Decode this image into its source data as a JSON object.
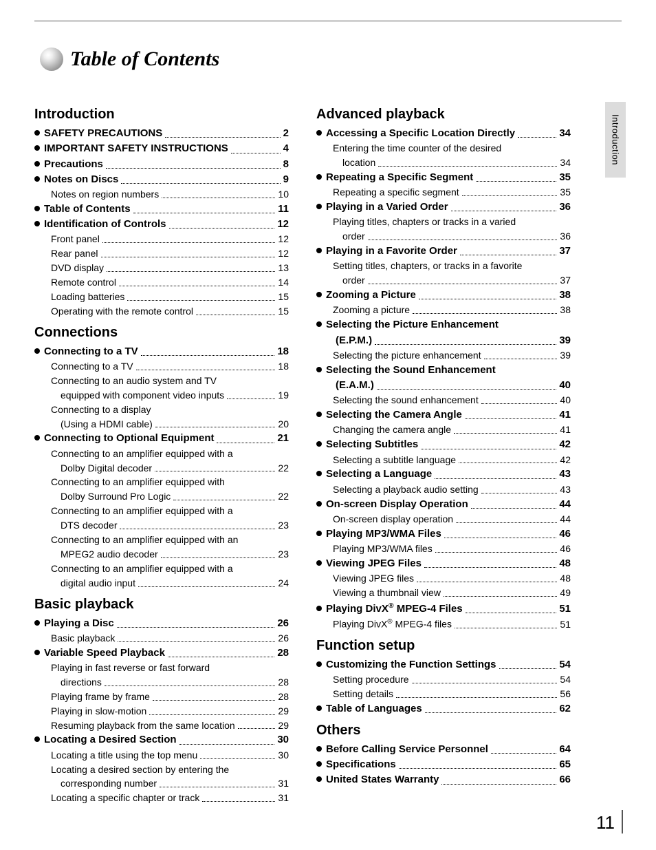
{
  "page_title": "Table of Contents",
  "side_tab": "Introduction",
  "page_number": "11",
  "left_sections": [
    {
      "heading": "Introduction",
      "items": [
        {
          "type": "bold",
          "text": "SAFETY PRECAUTIONS",
          "page": "2"
        },
        {
          "type": "bold",
          "text": "IMPORTANT SAFETY INSTRUCTIONS",
          "page": "4"
        },
        {
          "type": "bold",
          "text": "Precautions",
          "page": "8"
        },
        {
          "type": "bold",
          "text": "Notes on Discs",
          "page": "9"
        },
        {
          "type": "sub",
          "text": "Notes on region numbers",
          "page": "10"
        },
        {
          "type": "bold",
          "text": "Table of Contents",
          "page": "11"
        },
        {
          "type": "bold",
          "text": "Identification of Controls",
          "page": "12"
        },
        {
          "type": "sub",
          "text": "Front panel",
          "page": "12"
        },
        {
          "type": "sub",
          "text": "Rear panel",
          "page": "12"
        },
        {
          "type": "sub",
          "text": "DVD display",
          "page": "13"
        },
        {
          "type": "sub",
          "text": "Remote control",
          "page": "14"
        },
        {
          "type": "sub",
          "text": "Loading batteries",
          "page": "15"
        },
        {
          "type": "sub",
          "text": "Operating with the remote control",
          "page": "15"
        }
      ]
    },
    {
      "heading": "Connections",
      "items": [
        {
          "type": "bold",
          "text": "Connecting to a TV",
          "page": "18"
        },
        {
          "type": "sub",
          "text": "Connecting to a TV",
          "page": "18"
        },
        {
          "type": "wrap",
          "line1": "Connecting to an audio system and TV",
          "line2": "equipped with component video inputs",
          "page": "19"
        },
        {
          "type": "wrap",
          "line1": "Connecting to a display",
          "line2": "(Using a HDMI cable)",
          "page": "20"
        },
        {
          "type": "bold",
          "text": "Connecting to Optional Equipment",
          "page": "21"
        },
        {
          "type": "wrap",
          "line1": "Connecting to an amplifier equipped with a",
          "line2": "Dolby Digital decoder",
          "page": "22"
        },
        {
          "type": "wrap",
          "line1": "Connecting to an amplifier equipped with",
          "line2": "Dolby Surround Pro Logic",
          "page": "22"
        },
        {
          "type": "wrap",
          "line1": "Connecting to an amplifier equipped with a",
          "line2": "DTS decoder",
          "page": "23"
        },
        {
          "type": "wrap",
          "line1": "Connecting to an amplifier equipped with an",
          "line2": "MPEG2 audio decoder",
          "page": "23"
        },
        {
          "type": "wrap",
          "line1": "Connecting to an amplifier equipped with a",
          "line2": "digital audio input",
          "page": "24"
        }
      ]
    },
    {
      "heading": "Basic playback",
      "items": [
        {
          "type": "bold",
          "text": "Playing a Disc",
          "page": "26"
        },
        {
          "type": "sub",
          "text": "Basic playback",
          "page": "26"
        },
        {
          "type": "bold",
          "text": "Variable Speed Playback",
          "page": "28"
        },
        {
          "type": "wrap",
          "line1": "Playing in fast reverse or fast forward",
          "line2": "directions",
          "page": "28"
        },
        {
          "type": "sub",
          "text": "Playing frame by frame",
          "page": "28"
        },
        {
          "type": "sub",
          "text": "Playing in slow-motion",
          "page": "29"
        },
        {
          "type": "sub",
          "text": "Resuming playback from the same location",
          "page": "29"
        },
        {
          "type": "bold",
          "text": "Locating a Desired Section",
          "page": "30"
        },
        {
          "type": "sub",
          "text": "Locating a title using the top menu",
          "page": "30"
        },
        {
          "type": "wrap",
          "line1": "Locating a desired section by entering the",
          "line2": "corresponding number",
          "page": "31"
        },
        {
          "type": "sub",
          "text": "Locating a specific chapter or track",
          "page": "31"
        }
      ]
    }
  ],
  "right_sections": [
    {
      "heading": "Advanced playback",
      "items": [
        {
          "type": "bold",
          "text": "Accessing a Specific Location Directly",
          "page": "34"
        },
        {
          "type": "wrap",
          "line1": "Entering the time counter of the desired",
          "line2": "location",
          "page": "34"
        },
        {
          "type": "bold",
          "text": "Repeating a Specific Segment",
          "page": "35"
        },
        {
          "type": "sub",
          "text": "Repeating a specific segment",
          "page": "35"
        },
        {
          "type": "bold",
          "text": "Playing in a Varied Order",
          "page": "36"
        },
        {
          "type": "wrap",
          "line1": "Playing titles, chapters or tracks in a varied",
          "line2": "order",
          "page": "36"
        },
        {
          "type": "bold",
          "text": "Playing in a Favorite Order",
          "page": "37"
        },
        {
          "type": "wrap",
          "line1": "Setting titles, chapters, or tracks in a favorite",
          "line2": "order",
          "page": "37"
        },
        {
          "type": "bold",
          "text": "Zooming a Picture",
          "page": "38"
        },
        {
          "type": "sub",
          "text": "Zooming a picture",
          "page": "38"
        },
        {
          "type": "boldwrap",
          "line1": "Selecting the Picture Enhancement",
          "line2": "(E.P.M.)",
          "page": "39"
        },
        {
          "type": "sub",
          "text": "Selecting the picture enhancement",
          "page": "39"
        },
        {
          "type": "boldwrap",
          "line1": "Selecting the Sound Enhancement",
          "line2": "(E.A.M.)",
          "page": "40"
        },
        {
          "type": "sub",
          "text": "Selecting the sound enhancement",
          "page": "40"
        },
        {
          "type": "bold",
          "text": "Selecting the Camera Angle",
          "page": "41"
        },
        {
          "type": "sub",
          "text": "Changing the camera angle",
          "page": "41"
        },
        {
          "type": "bold",
          "text": "Selecting Subtitles",
          "page": "42"
        },
        {
          "type": "sub",
          "text": "Selecting a subtitle language",
          "page": "42"
        },
        {
          "type": "bold",
          "text": "Selecting a Language",
          "page": "43"
        },
        {
          "type": "sub",
          "text": "Selecting a playback audio setting",
          "page": "43"
        },
        {
          "type": "bold",
          "text": "On-screen Display Operation",
          "page": "44"
        },
        {
          "type": "sub",
          "text": "On-screen display operation",
          "page": "44"
        },
        {
          "type": "bold",
          "text": "Playing MP3/WMA Files",
          "page": "46"
        },
        {
          "type": "sub",
          "text": "Playing MP3/WMA files",
          "page": "46"
        },
        {
          "type": "bold",
          "text": "Viewing JPEG Files",
          "page": "48"
        },
        {
          "type": "sub",
          "text": "Viewing JPEG files",
          "page": "48"
        },
        {
          "type": "sub",
          "text": "Viewing a thumbnail view",
          "page": "49"
        },
        {
          "type": "bold",
          "html": "Playing DivX<sup>®</sup> MPEG-4 Files",
          "page": "51"
        },
        {
          "type": "sub",
          "html": "Playing DivX<sup>®</sup> MPEG-4 files",
          "page": "51"
        }
      ]
    },
    {
      "heading": "Function setup",
      "items": [
        {
          "type": "bold",
          "text": "Customizing the Function Settings",
          "page": "54"
        },
        {
          "type": "sub",
          "text": "Setting procedure",
          "page": "54"
        },
        {
          "type": "sub",
          "text": "Setting details",
          "page": "56"
        },
        {
          "type": "bold",
          "text": "Table of Languages",
          "page": "62"
        }
      ]
    },
    {
      "heading": "Others",
      "items": [
        {
          "type": "bold",
          "text": "Before Calling Service Personnel",
          "page": "64"
        },
        {
          "type": "bold",
          "text": "Specifications",
          "page": "65"
        },
        {
          "type": "bold",
          "text": "United States Warranty",
          "page": "66"
        }
      ]
    }
  ]
}
